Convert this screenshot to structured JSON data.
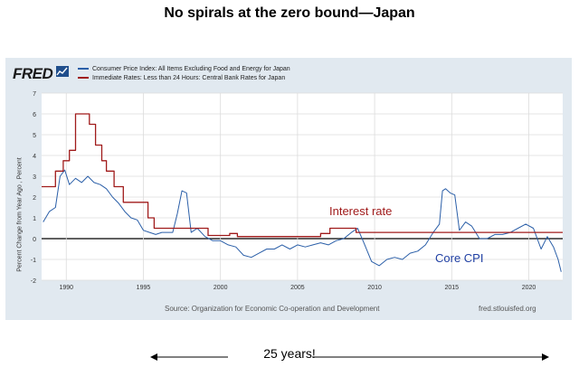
{
  "slide_title": "No spirals at the zero bound—Japan",
  "fred": {
    "logo_text": "FRED",
    "source": "Source: Organization for Economic Co-operation and Development",
    "url": "fred.stlouisfed.org"
  },
  "legend": [
    {
      "label": "Consumer Price Index: All Items Excluding Food and Energy for Japan",
      "color": "#2b5fa8"
    },
    {
      "label": "Immediate Rates: Less than 24 Hours: Central Bank Rates for Japan",
      "color": "#a01b1b"
    }
  ],
  "annotations": {
    "interest_rate": "Interest rate",
    "core_cpi": "Core CPI",
    "years": "25 years!"
  },
  "chart_data": {
    "type": "line",
    "title": "",
    "xlabel": "",
    "ylabel": "Percent Change from Year Ago , Percent",
    "xlim": [
      1988.4,
      2022.2
    ],
    "ylim": [
      -2,
      7
    ],
    "x_ticks": [
      1990,
      1995,
      2000,
      2005,
      2010,
      2015,
      2020
    ],
    "y_ticks": [
      -2,
      -1,
      0,
      1,
      2,
      3,
      4,
      5,
      6,
      7
    ],
    "grid": true,
    "series": [
      {
        "name": "Consumer Price Index: All Items Excluding Food and Energy for Japan",
        "color": "#2b5fa8",
        "points": [
          [
            1988.5,
            0.8
          ],
          [
            1988.9,
            1.3
          ],
          [
            1989.3,
            1.5
          ],
          [
            1989.6,
            3.0
          ],
          [
            1989.9,
            3.3
          ],
          [
            1990.2,
            2.6
          ],
          [
            1990.6,
            2.9
          ],
          [
            1991.0,
            2.7
          ],
          [
            1991.4,
            3.0
          ],
          [
            1991.8,
            2.7
          ],
          [
            1992.2,
            2.6
          ],
          [
            1992.6,
            2.4
          ],
          [
            1993.0,
            2.0
          ],
          [
            1993.4,
            1.7
          ],
          [
            1993.8,
            1.3
          ],
          [
            1994.2,
            1.0
          ],
          [
            1994.6,
            0.9
          ],
          [
            1995.0,
            0.4
          ],
          [
            1995.4,
            0.3
          ],
          [
            1995.8,
            0.2
          ],
          [
            1996.2,
            0.3
          ],
          [
            1996.6,
            0.3
          ],
          [
            1996.9,
            0.3
          ],
          [
            1997.2,
            1.2
          ],
          [
            1997.5,
            2.3
          ],
          [
            1997.8,
            2.2
          ],
          [
            1998.1,
            0.3
          ],
          [
            1998.5,
            0.5
          ],
          [
            1999.0,
            0.1
          ],
          [
            1999.5,
            -0.1
          ],
          [
            2000.0,
            -0.1
          ],
          [
            2000.5,
            -0.3
          ],
          [
            2001.0,
            -0.4
          ],
          [
            2001.5,
            -0.8
          ],
          [
            2002.0,
            -0.9
          ],
          [
            2002.5,
            -0.7
          ],
          [
            2003.0,
            -0.5
          ],
          [
            2003.5,
            -0.5
          ],
          [
            2004.0,
            -0.3
          ],
          [
            2004.5,
            -0.5
          ],
          [
            2005.0,
            -0.3
          ],
          [
            2005.5,
            -0.4
          ],
          [
            2006.0,
            -0.3
          ],
          [
            2006.5,
            -0.2
          ],
          [
            2007.0,
            -0.3
          ],
          [
            2007.5,
            -0.1
          ],
          [
            2008.0,
            0.0
          ],
          [
            2008.5,
            0.3
          ],
          [
            2008.9,
            0.5
          ],
          [
            2009.3,
            -0.2
          ],
          [
            2009.8,
            -1.1
          ],
          [
            2010.3,
            -1.3
          ],
          [
            2010.8,
            -1.0
          ],
          [
            2011.3,
            -0.9
          ],
          [
            2011.8,
            -1.0
          ],
          [
            2012.3,
            -0.7
          ],
          [
            2012.8,
            -0.6
          ],
          [
            2013.3,
            -0.3
          ],
          [
            2013.8,
            0.3
          ],
          [
            2014.2,
            0.7
          ],
          [
            2014.4,
            2.3
          ],
          [
            2014.6,
            2.4
          ],
          [
            2014.9,
            2.2
          ],
          [
            2015.2,
            2.1
          ],
          [
            2015.5,
            0.4
          ],
          [
            2015.9,
            0.8
          ],
          [
            2016.3,
            0.6
          ],
          [
            2016.8,
            0.0
          ],
          [
            2017.3,
            0.0
          ],
          [
            2017.8,
            0.2
          ],
          [
            2018.3,
            0.2
          ],
          [
            2018.8,
            0.3
          ],
          [
            2019.3,
            0.5
          ],
          [
            2019.8,
            0.7
          ],
          [
            2020.3,
            0.5
          ],
          [
            2020.8,
            -0.5
          ],
          [
            2021.2,
            0.1
          ],
          [
            2021.6,
            -0.4
          ],
          [
            2021.9,
            -1.0
          ],
          [
            2022.1,
            -1.6
          ]
        ]
      },
      {
        "name": "Immediate Rates: Less than 24 Hours: Central Bank Rates for Japan",
        "color": "#a01b1b",
        "points": [
          [
            1988.4,
            2.5
          ],
          [
            1989.3,
            2.5
          ],
          [
            1989.3,
            3.25
          ],
          [
            1989.8,
            3.25
          ],
          [
            1989.8,
            3.75
          ],
          [
            1990.2,
            3.75
          ],
          [
            1990.2,
            4.25
          ],
          [
            1990.6,
            4.25
          ],
          [
            1990.6,
            6.0
          ],
          [
            1991.5,
            6.0
          ],
          [
            1991.5,
            5.5
          ],
          [
            1991.9,
            5.5
          ],
          [
            1991.9,
            4.5
          ],
          [
            1992.3,
            4.5
          ],
          [
            1992.3,
            3.75
          ],
          [
            1992.6,
            3.75
          ],
          [
            1992.6,
            3.25
          ],
          [
            1993.1,
            3.25
          ],
          [
            1993.1,
            2.5
          ],
          [
            1993.7,
            2.5
          ],
          [
            1993.7,
            1.75
          ],
          [
            1995.3,
            1.75
          ],
          [
            1995.3,
            1.0
          ],
          [
            1995.7,
            1.0
          ],
          [
            1995.7,
            0.5
          ],
          [
            1999.2,
            0.5
          ],
          [
            1999.2,
            0.15
          ],
          [
            2000.6,
            0.15
          ],
          [
            2000.6,
            0.25
          ],
          [
            2001.1,
            0.25
          ],
          [
            2001.1,
            0.1
          ],
          [
            2006.5,
            0.1
          ],
          [
            2006.5,
            0.25
          ],
          [
            2007.1,
            0.25
          ],
          [
            2007.1,
            0.5
          ],
          [
            2008.8,
            0.5
          ],
          [
            2008.8,
            0.3
          ],
          [
            2022.2,
            0.3
          ]
        ]
      }
    ]
  }
}
